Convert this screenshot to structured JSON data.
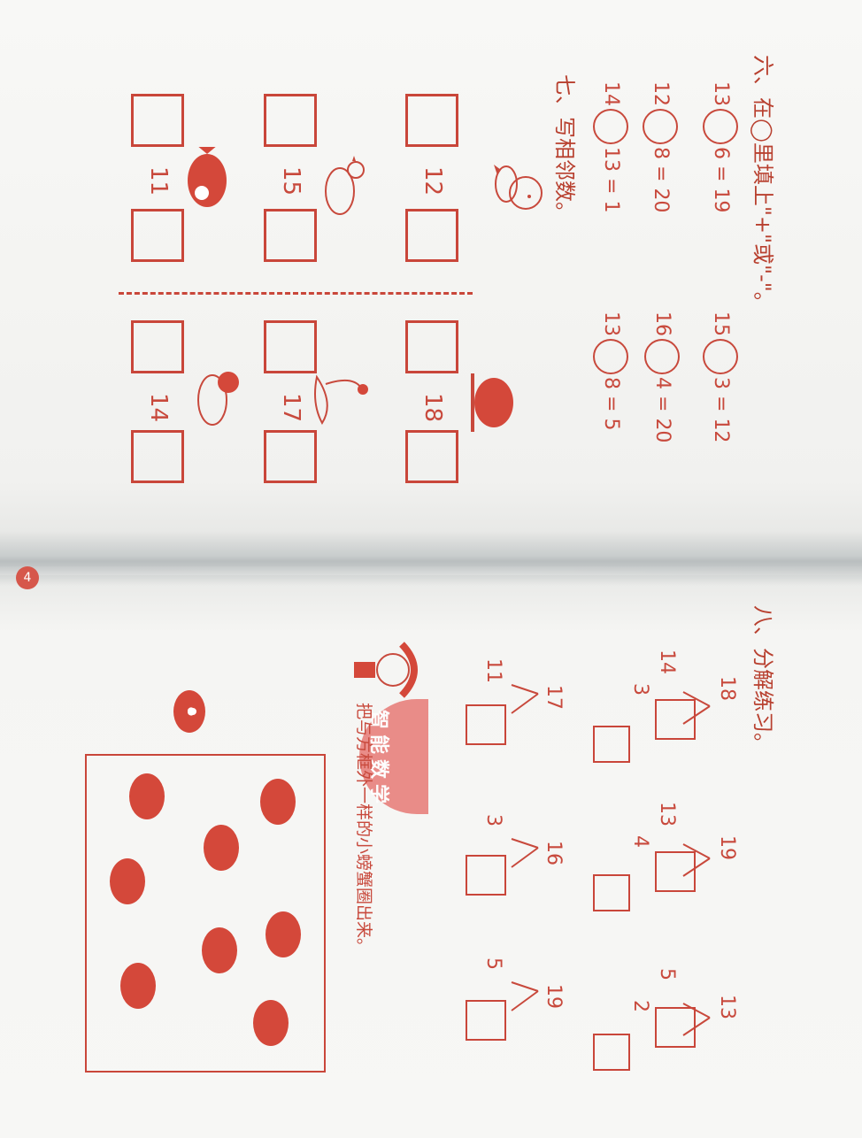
{
  "page_number": "4",
  "section6": {
    "title": "六、在◯里填上\"+\"或\"-\"。",
    "rows": [
      {
        "a": "13",
        "b": "6",
        "eq": "=",
        "r": "19"
      },
      {
        "a": "12",
        "b": "8",
        "eq": "=",
        "r": "20"
      },
      {
        "a": "14",
        "b": "13",
        "eq": "=",
        "r": "1"
      },
      {
        "a": "15",
        "b": "3",
        "eq": "=",
        "r": "12"
      },
      {
        "a": "16",
        "b": "4",
        "eq": "=",
        "r": "20"
      },
      {
        "a": "13",
        "b": "8",
        "eq": "=",
        "r": "5"
      }
    ]
  },
  "section7": {
    "title": "七、写相邻数。",
    "numbers": [
      "12",
      "15",
      "11",
      "18",
      "17",
      "14"
    ]
  },
  "section8": {
    "title": "八、分解练习。",
    "top_numbers": [
      "18",
      "19",
      "13",
      "17",
      "16",
      "19"
    ],
    "left_numbers": [
      "14",
      "13",
      "5",
      "11",
      "3",
      "5"
    ],
    "sub_numbers": [
      "3",
      "4",
      "2"
    ]
  },
  "smart": {
    "badge": "智能数学",
    "badge_chars": [
      "智",
      "能",
      "数",
      "学"
    ],
    "instruction": "把与方框外一样的小螃蟹圈出来。"
  },
  "colors": {
    "ink": "#c8493c",
    "paper": "#f6f6f4"
  }
}
